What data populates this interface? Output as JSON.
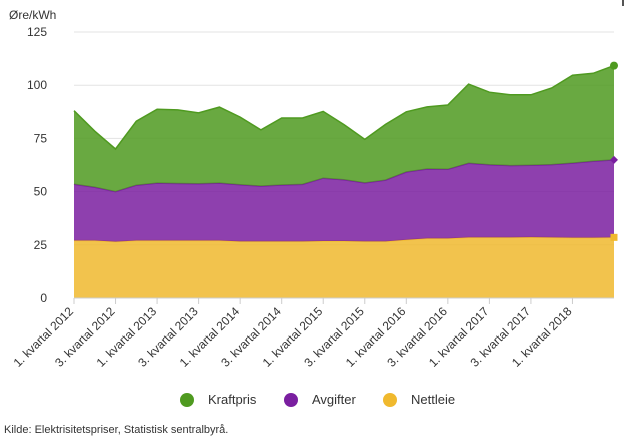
{
  "chart_data": {
    "type": "area",
    "stacked": true,
    "ylabel": "Øre/kWh",
    "ylim": [
      0,
      125
    ],
    "yticks": [
      0,
      25,
      50,
      75,
      100,
      125
    ],
    "grid": true,
    "legend_position": "bottom",
    "x": [
      "1. kvartal 2012",
      "2. kvartal 2012",
      "3. kvartal 2012",
      "4. kvartal 2012",
      "1. kvartal 2013",
      "2. kvartal 2013",
      "3. kvartal 2013",
      "4. kvartal 2013",
      "1. kvartal 2014",
      "2. kvartal 2014",
      "3. kvartal 2014",
      "4. kvartal 2014",
      "1. kvartal 2015",
      "2. kvartal 2015",
      "3. kvartal 2015",
      "4. kvartal 2015",
      "1. kvartal 2016",
      "2. kvartal 2016",
      "3. kvartal 2016",
      "4. kvartal 2016",
      "1. kvartal 2017",
      "2. kvartal 2017",
      "3. kvartal 2017",
      "4. kvartal 2017",
      "1. kvartal 2018",
      "2. kvartal 2018",
      "3. kvartal 2018"
    ],
    "xtick_labels": [
      "1. kvartal 2012",
      "3. kvartal 2012",
      "1. kvartal 2013",
      "3. kvartal 2013",
      "1. kvartal 2014",
      "3. kvartal 2014",
      "1. kvartal 2015",
      "3. kvartal 2015",
      "1. kvartal 2016",
      "3. kvartal 2016",
      "1. kvartal 2017",
      "3. kvartal 2017",
      "1. kvartal 2018"
    ],
    "series": [
      {
        "name": "Kraftpris",
        "color": "#4f9a20",
        "values": [
          34.5,
          26.4,
          20,
          30.1,
          34.7,
          34.6,
          33.3,
          35.7,
          31.8,
          26.4,
          31.5,
          31.2,
          31.4,
          25.9,
          20.5,
          26.2,
          28.3,
          29.2,
          30.2,
          37.2,
          34.1,
          33.3,
          33.1,
          36,
          41.3,
          41.3,
          44.3
        ]
      },
      {
        "name": "Avgifter",
        "color": "#7a1fa0",
        "values": [
          26.5,
          25,
          23.5,
          26,
          27,
          26.8,
          26.7,
          27,
          26.6,
          26,
          26.5,
          26.8,
          29.5,
          28.8,
          27.5,
          28.8,
          31.8,
          32.6,
          32.5,
          34.8,
          34.1,
          33.7,
          33.8,
          34.2,
          35,
          35.9,
          36.4
        ]
      },
      {
        "name": "Nettleie",
        "color": "#f0b92e",
        "values": [
          27,
          27,
          26.5,
          27,
          27,
          27,
          27,
          27,
          26.6,
          26.6,
          26.6,
          26.6,
          26.8,
          26.8,
          26.6,
          26.6,
          27.4,
          28,
          28,
          28.5,
          28.5,
          28.5,
          28.6,
          28.5,
          28.4,
          28.4,
          28.5
        ]
      }
    ]
  },
  "legend": {
    "items": [
      {
        "label": "Kraftpris",
        "color": "#4f9a20"
      },
      {
        "label": "Avgifter",
        "color": "#7a1fa0"
      },
      {
        "label": "Nettleie",
        "color": "#f0b92e"
      }
    ]
  },
  "source_text": "Kilde: Elektrisitetspriser, Statistisk sentralbyrå."
}
